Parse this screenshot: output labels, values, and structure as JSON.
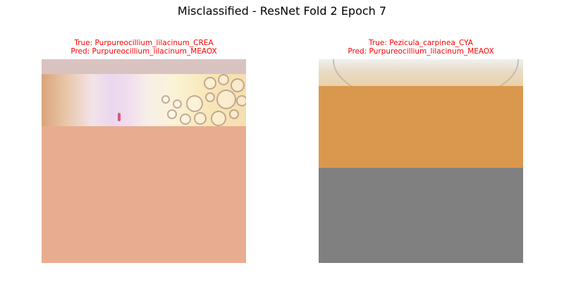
{
  "figure": {
    "title": "Misclassified - ResNet Fold 2 Epoch 7"
  },
  "panels": [
    {
      "true_label": "True: Purpureocillium_lilacinum_CREA",
      "pred_label": "Pred: Purpureocillium_lilacinum_MEAOX",
      "label_color": "#ff0000",
      "fill_color": "#e8ad90"
    },
    {
      "true_label": "True: Pezicula_carpinea_CYA",
      "pred_label": "Pred: Purpureocillium_lilacinum_MEAOX",
      "label_color": "#ff0000",
      "band_color": "#d9984d",
      "fill_color": "#808080"
    }
  ]
}
